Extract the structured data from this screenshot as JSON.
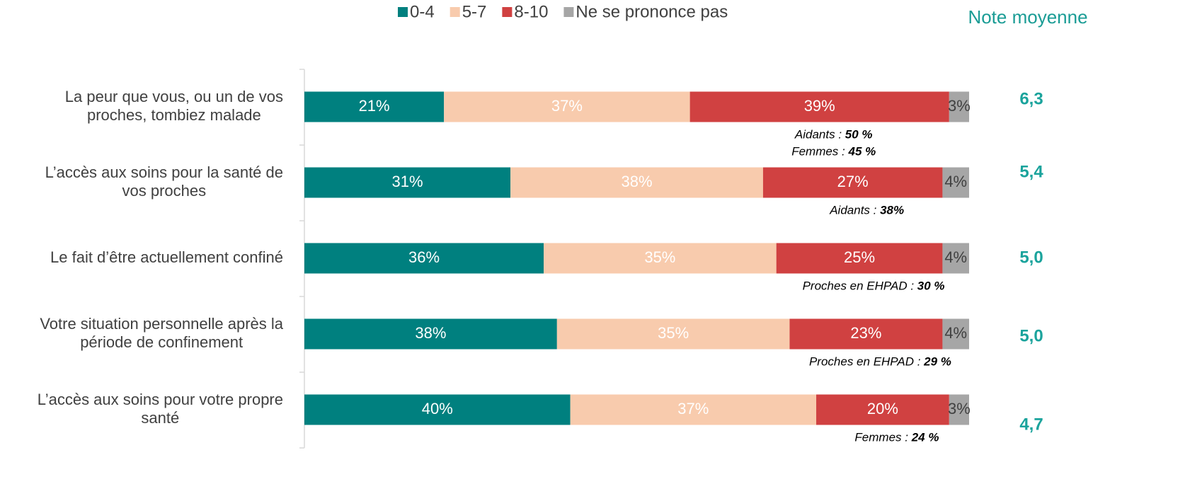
{
  "chart_data": {
    "type": "stacked_barh",
    "categories": [
      [
        "La peur que vous, ou un de vos",
        "proches, tombiez malade"
      ],
      [
        "L’accès aux soins pour la santé de",
        "vos proches"
      ],
      [
        "Le fait d’être actuellement confiné"
      ],
      [
        "Votre situation personnelle après la",
        "période de confinement"
      ],
      [
        "L’accès aux soins pour votre propre",
        "santé"
      ]
    ],
    "xlim": [
      0,
      100
    ],
    "series": [
      {
        "name": "0-4",
        "color": "#00807f",
        "label_color": "#ffffff",
        "values": [
          21,
          31,
          36,
          38,
          40
        ],
        "value_labels": [
          "21%",
          "31%",
          "36%",
          "38%",
          "40%"
        ]
      },
      {
        "name": "5-7",
        "color": "#f8cbad",
        "label_color": "#ffffff",
        "values": [
          37,
          38,
          35,
          35,
          37
        ],
        "value_labels": [
          "37%",
          "38%",
          "35%",
          "35%",
          "37%"
        ]
      },
      {
        "name": "8-10",
        "color": "#d04141",
        "label_color": "#ffffff",
        "values": [
          39,
          27,
          25,
          23,
          20
        ],
        "value_labels": [
          "39%",
          "27%",
          "25%",
          "23%",
          "20%"
        ]
      },
      {
        "name": "Ne se prononce pas",
        "color": "#a6a6a6",
        "label_color": "#404040",
        "values": [
          3,
          4,
          4,
          4,
          3
        ],
        "value_labels": [
          "3%",
          "4%",
          "4%",
          "4%",
          "3%"
        ]
      }
    ],
    "annotations": [
      [
        {
          "label": "Aidants : ",
          "value": "50 %"
        },
        {
          "label": "Femmes : ",
          "value": "45 %"
        }
      ],
      [
        {
          "label": "Aidants : ",
          "value": "38%"
        }
      ],
      [
        {
          "label": "Proches en EHPAD : ",
          "value": "30 %"
        }
      ],
      [
        {
          "label": "Proches en EHPAD : ",
          "value": "29 %"
        }
      ],
      [
        {
          "label": "Femmes : ",
          "value": "24 %"
        }
      ]
    ],
    "mean_title": "Note moyenne",
    "mean_values": [
      6.3,
      5.4,
      5.0,
      5.0,
      4.7
    ],
    "mean_labels": [
      "6,3",
      "5,4",
      "5,0",
      "5,0",
      "4,7"
    ]
  }
}
